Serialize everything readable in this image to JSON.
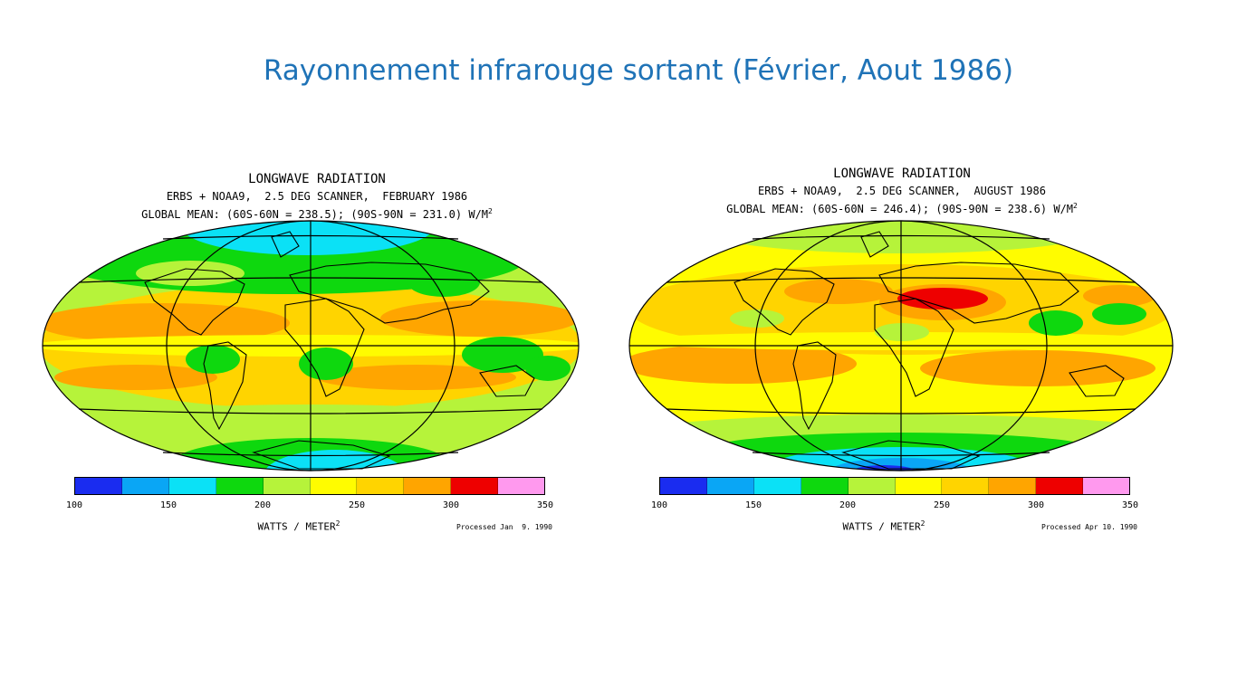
{
  "slide": {
    "title": "Rayonnement infrarouge sortant (Février, Aout 1986)"
  },
  "colors": {
    "title": "#1f73b7",
    "scale": [
      "#1a2cf0",
      "#0aa6f5",
      "#0be1f6",
      "#0ed80e",
      "#b6f33a",
      "#fffc00",
      "#ffd400",
      "#ffa500",
      "#ee0000",
      "#ff99ee"
    ]
  },
  "maps": [
    {
      "id": "feb",
      "title": "LONGWAVE RADIATION",
      "subtitle": "ERBS + NOAA9,  2.5 DEG SCANNER,  FEBRUARY 1986",
      "mean_text": "GLOBAL MEAN: (60S-60N = 238.5); (90S-90N = 231.0) W/M",
      "mean_sup": "2",
      "scale_ticks": [
        "100",
        "150",
        "200",
        "250",
        "300",
        "350"
      ],
      "unit_text": "WATTS / METER",
      "unit_sup": "2",
      "processed": "Processed Jan  9. 1990"
    },
    {
      "id": "aug",
      "title": "LONGWAVE RADIATION",
      "subtitle": "ERBS + NOAA9,  2.5 DEG SCANNER,  AUGUST 1986",
      "mean_text": "GLOBAL MEAN: (60S-60N = 246.4); (90S-90N = 238.6) W/M",
      "mean_sup": "2",
      "scale_ticks": [
        "100",
        "150",
        "200",
        "250",
        "300",
        "350"
      ],
      "unit_text": "WATTS / METER",
      "unit_sup": "2",
      "processed": "Processed Apr 10. 1990"
    }
  ]
}
